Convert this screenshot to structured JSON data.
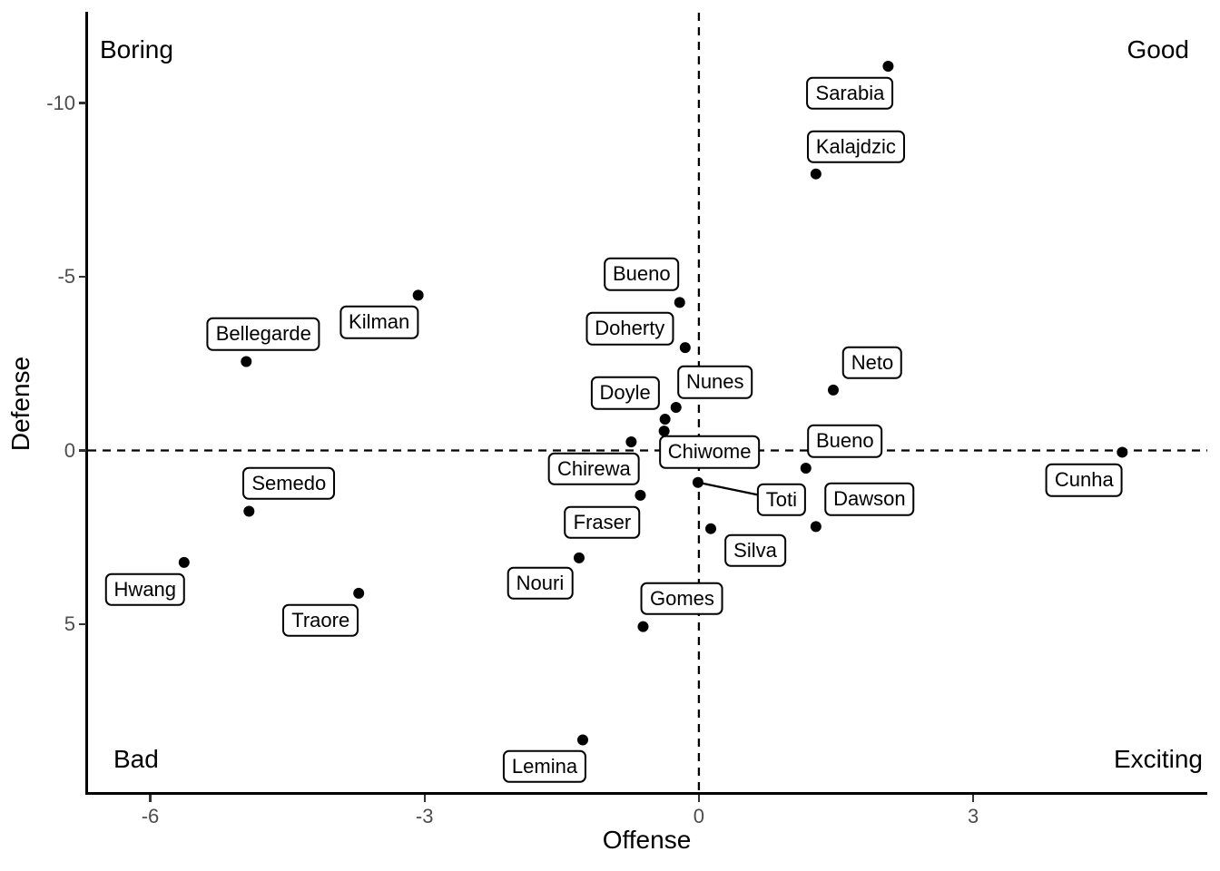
{
  "chart_data": {
    "type": "scatter",
    "xlabel": "Offense",
    "ylabel": "Defense",
    "x_ticks": [
      -6,
      -3,
      0,
      3
    ],
    "y_ticks": [
      -10,
      -5,
      0,
      5
    ],
    "xlim": [
      -6.7,
      5.56
    ],
    "ylim": [
      -12.6,
      9.87
    ],
    "y_axis_reversed": true,
    "grid": false,
    "reference_lines": {
      "vertical_x": 0,
      "horizontal_y": 0,
      "style": "dashed"
    },
    "quadrant_annotations": {
      "top_left": "Boring",
      "top_right": "Good",
      "bottom_left": "Bad",
      "bottom_right": "Exciting"
    },
    "colors": {
      "point": "#000000",
      "label_border": "#000000",
      "label_fill": "#ffffff",
      "reference_line": "#000000",
      "axis_line": "#000000",
      "tick_label": "#4d4d4d"
    },
    "points": [
      {
        "name": "Sarabia",
        "x": 2.07,
        "y": -11.06,
        "label_offset": [
          -42,
          30
        ]
      },
      {
        "name": "Kalajdzic",
        "x": 1.28,
        "y": -7.96,
        "label_offset": [
          44,
          -30
        ]
      },
      {
        "name": "Bueno",
        "x": -0.21,
        "y": -4.26,
        "label_offset": [
          -42,
          -31
        ]
      },
      {
        "name": "Kilman",
        "x": -3.07,
        "y": -4.47,
        "label_offset": [
          -43,
          30
        ]
      },
      {
        "name": "Doherty",
        "x": -0.15,
        "y": -2.96,
        "label_offset": [
          -61,
          -21
        ]
      },
      {
        "name": "Bellegarde",
        "x": -4.95,
        "y": -2.56,
        "label_offset": [
          19,
          -30
        ]
      },
      {
        "name": "Neto",
        "x": 1.47,
        "y": -1.74,
        "label_offset": [
          43,
          -30
        ]
      },
      {
        "name": "Nunes",
        "x": -0.25,
        "y": -1.24,
        "label_offset": [
          43,
          -28
        ]
      },
      {
        "name": "Doyle",
        "x": -0.37,
        "y": -0.9,
        "label_offset": [
          -44,
          -29
        ]
      },
      {
        "name": "Chiwome",
        "x": -0.38,
        "y": -0.56,
        "label_offset": [
          50,
          23
        ]
      },
      {
        "name": "Chirewa",
        "x": -0.74,
        "y": -0.25,
        "label_offset": [
          -41,
          30
        ]
      },
      {
        "name": "Bueno",
        "x": 1.17,
        "y": 0.51,
        "label_offset": [
          43,
          -30
        ]
      },
      {
        "name": "Cunha",
        "x": 4.63,
        "y": 0.05,
        "label_offset": [
          -42,
          31
        ]
      },
      {
        "name": "Toti",
        "x": -0.01,
        "y": 0.92,
        "label_offset": [
          92,
          19
        ],
        "connector": true
      },
      {
        "name": "Dawson",
        "x": 1.28,
        "y": 2.19,
        "label_offset": [
          59,
          -30
        ]
      },
      {
        "name": "Semedo",
        "x": -4.92,
        "y": 1.75,
        "label_offset": [
          44,
          -31
        ]
      },
      {
        "name": "Fraser",
        "x": -0.64,
        "y": 1.29,
        "label_offset": [
          -42,
          30
        ]
      },
      {
        "name": "Silva",
        "x": 0.13,
        "y": 2.25,
        "label_offset": [
          49,
          24
        ]
      },
      {
        "name": "Hwang",
        "x": -5.63,
        "y": 3.22,
        "label_offset": [
          -43,
          30
        ]
      },
      {
        "name": "Nouri",
        "x": -1.31,
        "y": 3.09,
        "label_offset": [
          -43,
          28
        ]
      },
      {
        "name": "Traore",
        "x": -3.72,
        "y": 4.11,
        "label_offset": [
          -42,
          30
        ]
      },
      {
        "name": "Gomes",
        "x": -0.61,
        "y": 5.07,
        "label_offset": [
          43,
          -31
        ]
      },
      {
        "name": "Lemina",
        "x": -1.27,
        "y": 8.33,
        "label_offset": [
          -42,
          29
        ]
      }
    ]
  }
}
